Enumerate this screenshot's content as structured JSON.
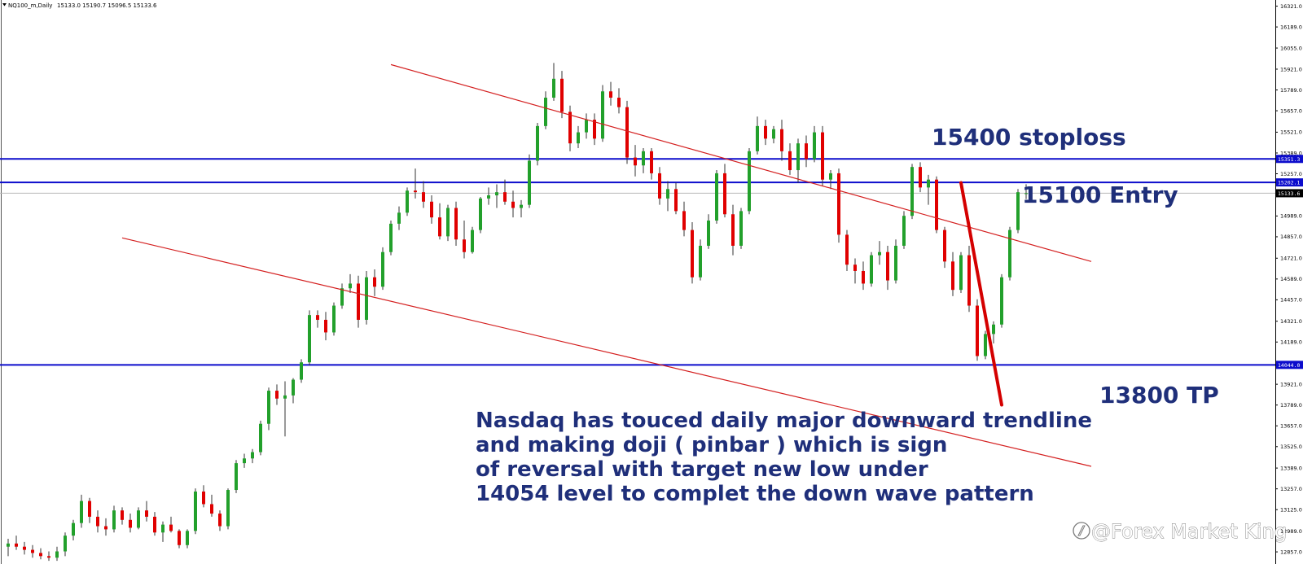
{
  "header": {
    "symbol_label": "NQ100_m,Daily",
    "ohlc_label": "15133.0 15190.7 15096.5 15133.6"
  },
  "watermark": {
    "text": "@Forex Market King"
  },
  "colors": {
    "bull_candle": "#22a02b",
    "bear_candle": "#e00000",
    "level_line": "#0c0ccc",
    "trendline": "#d42020",
    "projection": "#d40000",
    "annotation_text": "#1f2f7a",
    "current_price_tag": "#000000"
  },
  "annotations": {
    "stoploss": "15400 stoploss",
    "entry": "15100 Entry",
    "tp": "13800 TP",
    "note_lines": [
      "Nasdaq has touced daily major downward trendline",
      "and making doji ( pinbar ) which is sign",
      "of reversal with target new low under",
      "14054 level to complet the down wave pattern"
    ]
  },
  "chart_data": {
    "type": "candlestick",
    "timeframe": "Daily",
    "ylim": [
      12780,
      16360
    ],
    "y_ticks": [
      "16321.0",
      "16189.0",
      "16055.0",
      "15921.0",
      "15789.0",
      "15657.0",
      "15521.0",
      "15389.0",
      "15257.0",
      "15121.0",
      "14989.0",
      "14857.0",
      "14721.0",
      "14589.0",
      "14457.0",
      "14321.0",
      "14189.0",
      "14057.0",
      "13921.0",
      "13789.0",
      "13657.0",
      "13525.0",
      "13389.0",
      "13257.0",
      "13125.0",
      "12989.0",
      "12857.0"
    ],
    "horizontal_levels": [
      {
        "label": "15351.3",
        "value": 15351.3
      },
      {
        "label": "15202.1",
        "value": 15202.1
      },
      {
        "label": "14044.0",
        "value": 14044.0
      }
    ],
    "current_price": {
      "label": "15133.6",
      "value": 15133.6
    },
    "trend_channel": {
      "upper": [
        [
          47,
          15950
        ],
        [
          133,
          14700
        ]
      ],
      "lower": [
        [
          14,
          14850
        ],
        [
          133,
          13400
        ]
      ]
    },
    "projection": [
      [
        117,
        15200
      ],
      [
        122,
        13790
      ]
    ],
    "candles": [
      [
        12890,
        12940,
        12830,
        12910
      ],
      [
        12910,
        12960,
        12870,
        12890
      ],
      [
        12890,
        12920,
        12840,
        12870
      ],
      [
        12870,
        12900,
        12820,
        12850
      ],
      [
        12850,
        12880,
        12810,
        12830
      ],
      [
        12830,
        12860,
        12800,
        12820
      ],
      [
        12820,
        12890,
        12800,
        12860
      ],
      [
        12860,
        12980,
        12830,
        12960
      ],
      [
        12960,
        13060,
        12930,
        13040
      ],
      [
        13040,
        13220,
        13010,
        13180
      ],
      [
        13180,
        13200,
        13040,
        13080
      ],
      [
        13080,
        13120,
        12980,
        13020
      ],
      [
        13020,
        13070,
        12960,
        13000
      ],
      [
        13000,
        13150,
        12980,
        13120
      ],
      [
        13120,
        13140,
        13030,
        13060
      ],
      [
        13060,
        13100,
        12980,
        13010
      ],
      [
        13010,
        13140,
        13000,
        13120
      ],
      [
        13120,
        13180,
        13050,
        13080
      ],
      [
        13080,
        13110,
        12960,
        12980
      ],
      [
        12980,
        13050,
        12920,
        13030
      ],
      [
        13030,
        13080,
        12980,
        12990
      ],
      [
        12990,
        13000,
        12880,
        12900
      ],
      [
        12900,
        13000,
        12880,
        12990
      ],
      [
        12990,
        13260,
        12970,
        13240
      ],
      [
        13240,
        13280,
        13140,
        13160
      ],
      [
        13160,
        13220,
        13080,
        13100
      ],
      [
        13100,
        13120,
        12990,
        13020
      ],
      [
        13020,
        13260,
        13000,
        13250
      ],
      [
        13250,
        13440,
        13230,
        13420
      ],
      [
        13420,
        13480,
        13390,
        13450
      ],
      [
        13450,
        13510,
        13420,
        13490
      ],
      [
        13490,
        13690,
        13470,
        13670
      ],
      [
        13670,
        13900,
        13630,
        13880
      ],
      [
        13880,
        13920,
        13790,
        13830
      ],
      [
        13830,
        13940,
        13590,
        13850
      ],
      [
        13850,
        13960,
        13800,
        13950
      ],
      [
        13950,
        14080,
        13930,
        14060
      ],
      [
        14060,
        14390,
        14040,
        14360
      ],
      [
        14360,
        14390,
        14280,
        14330
      ],
      [
        14330,
        14380,
        14200,
        14250
      ],
      [
        14250,
        14440,
        14230,
        14420
      ],
      [
        14420,
        14560,
        14400,
        14530
      ],
      [
        14530,
        14620,
        14500,
        14560
      ],
      [
        14560,
        14610,
        14280,
        14330
      ],
      [
        14330,
        14640,
        14300,
        14600
      ],
      [
        14600,
        14650,
        14480,
        14540
      ],
      [
        14540,
        14790,
        14520,
        14760
      ],
      [
        14760,
        14960,
        14740,
        14940
      ],
      [
        14940,
        15050,
        14900,
        15010
      ],
      [
        15010,
        15170,
        14990,
        15150
      ],
      [
        15150,
        15290,
        15100,
        15140
      ],
      [
        15140,
        15210,
        15040,
        15080
      ],
      [
        15080,
        15120,
        14940,
        14980
      ],
      [
        14980,
        15070,
        14840,
        14860
      ],
      [
        14860,
        15060,
        14830,
        15040
      ],
      [
        15040,
        15080,
        14800,
        14840
      ],
      [
        14840,
        14960,
        14720,
        14760
      ],
      [
        14760,
        14920,
        14750,
        14900
      ],
      [
        14900,
        15110,
        14880,
        15100
      ],
      [
        15100,
        15170,
        15060,
        15120
      ],
      [
        15120,
        15190,
        15040,
        15140
      ],
      [
        15140,
        15220,
        15060,
        15080
      ],
      [
        15080,
        15150,
        14980,
        15040
      ],
      [
        15040,
        15090,
        14980,
        15060
      ],
      [
        15060,
        15380,
        15040,
        15340
      ],
      [
        15340,
        15580,
        15310,
        15560
      ],
      [
        15560,
        15780,
        15540,
        15740
      ],
      [
        15740,
        15960,
        15720,
        15860
      ],
      [
        15860,
        15910,
        15610,
        15650
      ],
      [
        15650,
        15690,
        15400,
        15450
      ],
      [
        15450,
        15560,
        15420,
        15520
      ],
      [
        15520,
        15640,
        15480,
        15600
      ],
      [
        15600,
        15640,
        15440,
        15480
      ],
      [
        15480,
        15820,
        15460,
        15780
      ],
      [
        15780,
        15840,
        15690,
        15740
      ],
      [
        15740,
        15800,
        15640,
        15680
      ],
      [
        15680,
        15720,
        15320,
        15360
      ],
      [
        15360,
        15440,
        15240,
        15310
      ],
      [
        15310,
        15420,
        15260,
        15400
      ],
      [
        15400,
        15420,
        15220,
        15260
      ],
      [
        15260,
        15300,
        15060,
        15100
      ],
      [
        15100,
        15210,
        15020,
        15160
      ],
      [
        15160,
        15200,
        15000,
        15020
      ],
      [
        15020,
        15080,
        14860,
        14900
      ],
      [
        14900,
        14950,
        14560,
        14600
      ],
      [
        14600,
        14840,
        14580,
        14800
      ],
      [
        14800,
        15000,
        14780,
        14960
      ],
      [
        14960,
        15280,
        14940,
        15260
      ],
      [
        15260,
        15320,
        14980,
        15000
      ],
      [
        15000,
        15060,
        14740,
        14800
      ],
      [
        14800,
        15040,
        14780,
        15020
      ],
      [
        15020,
        15420,
        15000,
        15400
      ],
      [
        15400,
        15620,
        15380,
        15560
      ],
      [
        15560,
        15600,
        15440,
        15480
      ],
      [
        15480,
        15560,
        15450,
        15540
      ],
      [
        15540,
        15600,
        15340,
        15400
      ],
      [
        15400,
        15450,
        15250,
        15280
      ],
      [
        15280,
        15480,
        15200,
        15450
      ],
      [
        15450,
        15500,
        15300,
        15350
      ],
      [
        15350,
        15560,
        15330,
        15520
      ],
      [
        15520,
        15560,
        15180,
        15220
      ],
      [
        15220,
        15280,
        15160,
        15260
      ],
      [
        15260,
        15290,
        14820,
        14870
      ],
      [
        14870,
        14900,
        14640,
        14680
      ],
      [
        14680,
        14720,
        14560,
        14640
      ],
      [
        14640,
        14700,
        14520,
        14560
      ],
      [
        14560,
        14760,
        14540,
        14740
      ],
      [
        14740,
        14830,
        14680,
        14760
      ],
      [
        14760,
        14800,
        14520,
        14580
      ],
      [
        14580,
        14840,
        14560,
        14800
      ],
      [
        14800,
        15020,
        14780,
        14990
      ],
      [
        14990,
        15320,
        14970,
        15300
      ],
      [
        15300,
        15330,
        15140,
        15170
      ],
      [
        15170,
        15250,
        15060,
        15220
      ],
      [
        15220,
        15240,
        14880,
        14900
      ],
      [
        14900,
        14920,
        14660,
        14700
      ],
      [
        14700,
        14760,
        14480,
        14520
      ],
      [
        14520,
        14760,
        14500,
        14740
      ],
      [
        14740,
        14800,
        14380,
        14420
      ],
      [
        14420,
        14460,
        14070,
        14100
      ],
      [
        14100,
        14260,
        14080,
        14240
      ],
      [
        14240,
        14320,
        14180,
        14300
      ],
      [
        14300,
        14620,
        14280,
        14600
      ],
      [
        14600,
        14920,
        14580,
        14900
      ],
      [
        14900,
        15160,
        14880,
        15140
      ],
      [
        15133.0,
        15190.7,
        15096.5,
        15133.6
      ]
    ]
  }
}
